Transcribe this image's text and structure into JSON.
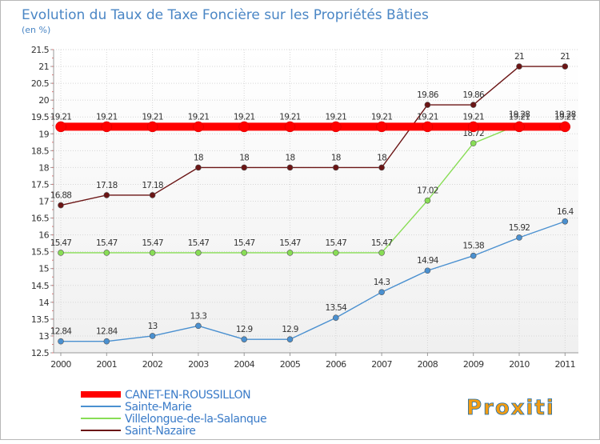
{
  "chart_data": {
    "type": "line",
    "title": "Evolution du Taux de Taxe Foncière sur les Propriétés Bâties",
    "subtitle": "(en %)",
    "xlabel": "",
    "ylabel": "",
    "ylim": [
      12.5,
      21.5
    ],
    "yticks": [
      12.5,
      13,
      13.5,
      14,
      14.5,
      15,
      15.5,
      16,
      16.5,
      17,
      17.5,
      18,
      18.5,
      19,
      19.5,
      20,
      20.5,
      21,
      21.5
    ],
    "x": [
      2000,
      2001,
      2002,
      2003,
      2004,
      2005,
      2006,
      2007,
      2008,
      2009,
      2010,
      2011
    ],
    "grid": true,
    "legend_position": "bottom-left",
    "series": [
      {
        "name": "CANET-EN-ROUSSILLON",
        "color": "#ff0000",
        "values": [
          19.21,
          19.21,
          19.21,
          19.21,
          19.21,
          19.21,
          19.21,
          19.21,
          19.21,
          19.21,
          19.21,
          19.21
        ],
        "labels": [
          "19.21",
          "19.21",
          "19.21",
          "19.21",
          "19.21",
          "19.21",
          "19.21",
          "19.21",
          "19.21",
          "19.21",
          "19.21",
          "19.21"
        ]
      },
      {
        "name": "Sainte-Marie",
        "color": "#4a90d0",
        "values": [
          12.84,
          12.84,
          13,
          13.3,
          12.9,
          12.9,
          13.54,
          14.3,
          14.94,
          15.38,
          15.92,
          16.4
        ],
        "labels": [
          "12.84",
          "12.84",
          "13",
          "13.3",
          "12.9",
          "12.9",
          "13.54",
          "14.3",
          "14.94",
          "15.38",
          "15.92",
          "16.4"
        ]
      },
      {
        "name": "Villelongue-de-la-Salanque",
        "color": "#88dd55",
        "values": [
          15.47,
          15.47,
          15.47,
          15.47,
          15.47,
          15.47,
          15.47,
          15.47,
          17.02,
          18.72,
          19.28,
          19.28
        ],
        "labels": [
          "15.47",
          "15.47",
          "15.47",
          "15.47",
          "15.47",
          "15.47",
          "15.47",
          "15.47",
          "17.02",
          "18.72",
          "19.28",
          "19.28"
        ]
      },
      {
        "name": "Saint-Nazaire",
        "color": "#6b1515",
        "values": [
          16.88,
          17.18,
          17.18,
          18,
          18,
          18,
          18,
          18,
          19.86,
          19.86,
          21,
          21
        ],
        "labels": [
          "16.88",
          "17.18",
          "17.18",
          "18",
          "18",
          "18",
          "18",
          "18",
          "19.86",
          "19.86",
          "21",
          "21"
        ]
      }
    ]
  },
  "brand": {
    "text": "Proxiti"
  }
}
